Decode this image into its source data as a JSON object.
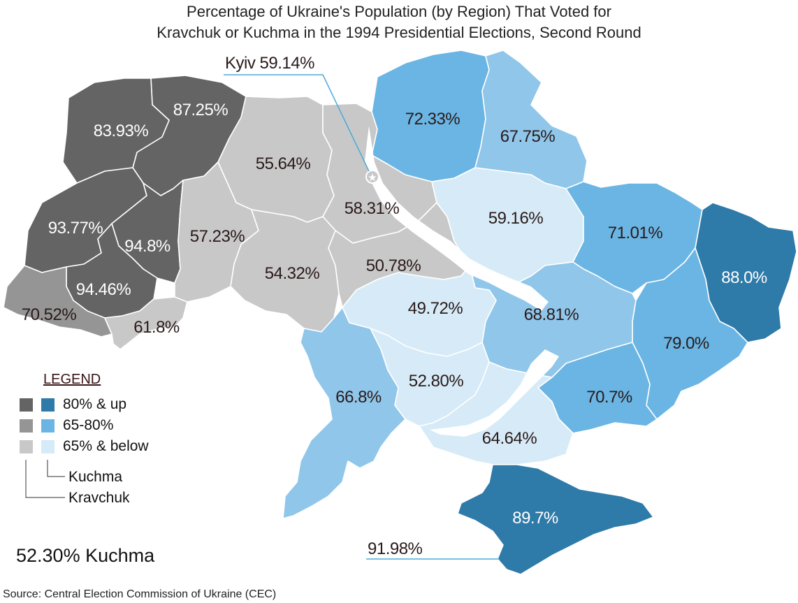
{
  "title": {
    "line1": "Percentage of Ukraine's Population (by Region) That Voted for",
    "line2": "Kravchuk or Kuchma in the 1994 Presidential Elections, Second Round"
  },
  "colors": {
    "kravchuk_high": "#646464",
    "kravchuk_mid": "#959595",
    "kravchuk_low": "#c8c8c8",
    "kuchma_high": "#2e7aa8",
    "kuchma_mid": "#6ab5e3",
    "kuchma_mid_light": "#8fc6ea",
    "kuchma_low": "#d6ebf7",
    "callout_line": "#4aaad8"
  },
  "regions": [
    {
      "id": "volyn",
      "value": "87.25%",
      "winner": "Kravchuk",
      "tier": "80% & up"
    },
    {
      "id": "lviv",
      "value": "93.77%",
      "winner": "Kravchuk",
      "tier": "80% & up"
    },
    {
      "id": "rivne",
      "value": "83.93%",
      "winner": "Kravchuk",
      "tier": "80% & up"
    },
    {
      "id": "ternopil",
      "value": "94.8%",
      "winner": "Kravchuk",
      "tier": "80% & up"
    },
    {
      "id": "ivano-frankivsk",
      "value": "94.46%",
      "winner": "Kravchuk",
      "tier": "80% & up"
    },
    {
      "id": "zakarpattia",
      "value": "70.52%",
      "winner": "Kravchuk",
      "tier": "65-80%"
    },
    {
      "id": "chernivtsi",
      "value": "61.8%",
      "winner": "Kravchuk",
      "tier": "65% & below"
    },
    {
      "id": "zhytomyr",
      "value": "55.64%",
      "winner": "Kravchuk",
      "tier": "65% & below"
    },
    {
      "id": "kyiv-oblast",
      "value": "58.31%",
      "winner": "Kravchuk",
      "tier": "65% & below"
    },
    {
      "id": "khmelnytskyi",
      "value": "57.23%",
      "winner": "Kravchuk",
      "tier": "65% & below"
    },
    {
      "id": "vinnytsia",
      "value": "54.32%",
      "winner": "Kravchuk",
      "tier": "65% & below"
    },
    {
      "id": "cherkasy",
      "value": "50.78%",
      "winner": "Kravchuk",
      "tier": "65% & below"
    },
    {
      "id": "chernihiv",
      "value": "72.33%",
      "winner": "Kuchma",
      "tier": "65-80%"
    },
    {
      "id": "sumy",
      "value": "67.75%",
      "winner": "Kuchma",
      "tier": "65-80%"
    },
    {
      "id": "poltava",
      "value": "59.16%",
      "winner": "Kuchma",
      "tier": "65% & below"
    },
    {
      "id": "kharkiv",
      "value": "71.01%",
      "winner": "Kuchma",
      "tier": "65-80%"
    },
    {
      "id": "luhansk",
      "value": "88.0%",
      "winner": "Kuchma",
      "tier": "80% & up"
    },
    {
      "id": "donetsk",
      "value": "79.0%",
      "winner": "Kuchma",
      "tier": "65-80%"
    },
    {
      "id": "dnipropetrovsk",
      "value": "68.81%",
      "winner": "Kuchma",
      "tier": "65-80%"
    },
    {
      "id": "kirovohrad",
      "value": "49.72%",
      "winner": "Kuchma",
      "tier": "65% & below"
    },
    {
      "id": "zaporizhzhia",
      "value": "70.7%",
      "winner": "Kuchma",
      "tier": "65-80%"
    },
    {
      "id": "mykolaiv",
      "value": "52.80%",
      "winner": "Kuchma",
      "tier": "65% & below"
    },
    {
      "id": "odesa",
      "value": "66.8%",
      "winner": "Kuchma",
      "tier": "65-80%"
    },
    {
      "id": "kherson",
      "value": "64.64%",
      "winner": "Kuchma",
      "tier": "65% & below"
    },
    {
      "id": "crimea",
      "value": "89.7%",
      "winner": "Kuchma",
      "tier": "80% & up"
    }
  ],
  "callouts": {
    "kyiv": "Kyiv 59.14%",
    "sevastopol": "91.98%"
  },
  "legend": {
    "title": "LEGEND",
    "rows": [
      "80% & up",
      "65-80%",
      "65% & below"
    ],
    "kuchma_label": "Kuchma",
    "kravchuk_label": "Kravchuk"
  },
  "total": "52.30%  Kuchma",
  "source": "Source: Central Election Commission of Ukraine (CEC)"
}
